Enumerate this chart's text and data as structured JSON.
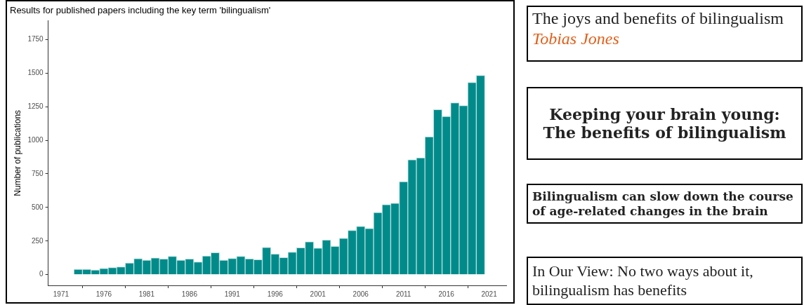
{
  "chart_data": {
    "type": "histogram",
    "title": "Results for published papers including the key term 'bilingualism'",
    "ylabel": "Number of publications",
    "bins": [
      1972.5,
      1973.5,
      1974.5,
      1975.5,
      1976.5,
      1977.5,
      1978.5,
      1979.5,
      1980.5,
      1981.5,
      1982.5,
      1983.5,
      1984.5,
      1985.5,
      1986.5,
      1987.5,
      1988.5,
      1989.5,
      1990.5,
      1991.5,
      1992.5,
      1993.5,
      1994.5,
      1995.5,
      1996.5,
      1997.5,
      1998.5,
      1999.5,
      2000.5,
      2001.5,
      2002.5,
      2003.5,
      2004.5,
      2005.5,
      2006.5,
      2007.5,
      2008.5,
      2009.5,
      2010.5,
      2011.5,
      2012.5,
      2013.5,
      2014.5,
      2015.5,
      2016.5,
      2017.5,
      2018.5,
      2019.5,
      2020.5
    ],
    "values": [
      40,
      40,
      35,
      46,
      53,
      58,
      86,
      119,
      107,
      124,
      117,
      136,
      108,
      117,
      95,
      139,
      163,
      108,
      120,
      136,
      118,
      112,
      203,
      153,
      127,
      167,
      200,
      244,
      198,
      258,
      210,
      270,
      330,
      360,
      344,
      463,
      521,
      531,
      692,
      855,
      869,
      1026,
      1228,
      1178,
      1280,
      1259,
      1431,
      1483
    ],
    "color": "#008b8a",
    "xlim": [
      1969.5,
      2023
    ],
    "xticks": [
      1971,
      1976,
      1981,
      1986,
      1991,
      1996,
      2001,
      2006,
      2011,
      2016,
      2021
    ],
    "ylim": [
      -80,
      1890
    ],
    "yticks": [
      0,
      250,
      500,
      750,
      1000,
      1250,
      1500,
      1750
    ],
    "grid": false,
    "legend": false,
    "annotations": [
      "The joys and benefits of bilingualism",
      "Tobias Jones",
      "Keeping your brain young: The benefits of bilingualism",
      "Bilingualism can slow down the course of age-related changes in the brain",
      "In Our View: No two ways about it, bilingualism has benefits"
    ]
  }
}
